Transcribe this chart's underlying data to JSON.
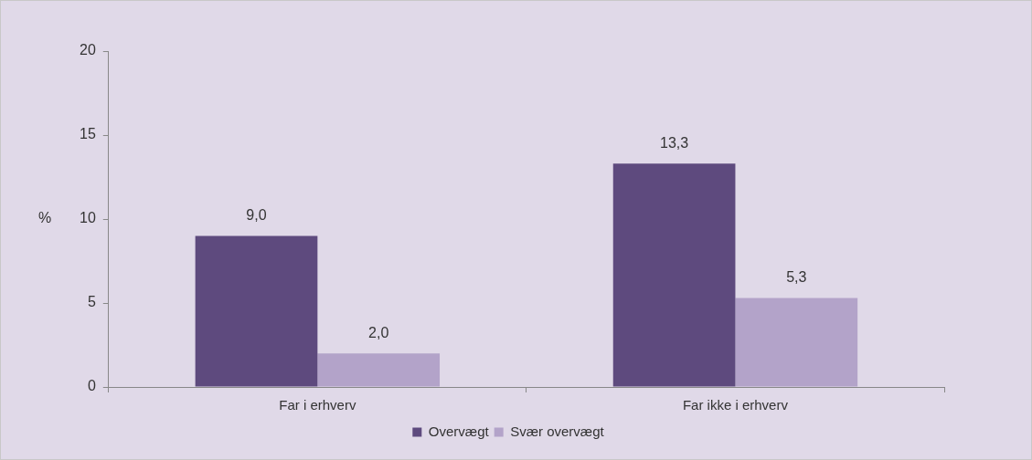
{
  "chart_data": {
    "type": "bar",
    "ylabel": "%",
    "categories": [
      "Far i erhverv",
      "Far ikke i erhverv"
    ],
    "series": [
      {
        "name": "Overvægt",
        "color": "#5e4a7e",
        "values": [
          9.0,
          13.3
        ],
        "value_labels": [
          "9,0",
          "13,3"
        ]
      },
      {
        "name": "Svær overvægt",
        "color": "#b3a3c9",
        "values": [
          2.0,
          5.3
        ],
        "value_labels": [
          "2,0",
          "5,3"
        ]
      }
    ],
    "ylim": [
      0,
      20
    ],
    "yticks": [
      0,
      5,
      10,
      15,
      20
    ],
    "grid": false,
    "legend": "bottom"
  }
}
